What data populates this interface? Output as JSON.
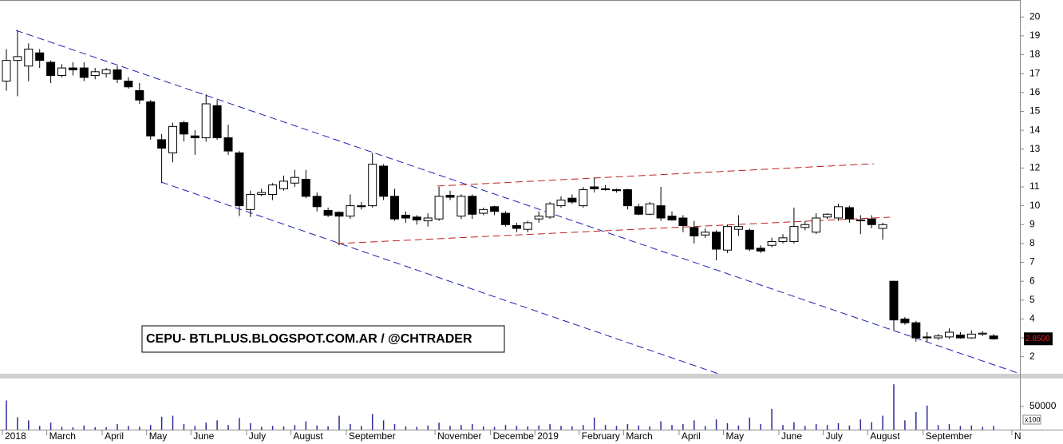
{
  "chart_data": [
    {
      "type": "candlestick",
      "categories": [
        "2018",
        null,
        null,
        null,
        "March",
        null,
        null,
        null,
        null,
        "April",
        null,
        null,
        null,
        "May",
        null,
        null,
        null,
        "June",
        null,
        null,
        null,
        null,
        "July",
        null,
        null,
        null,
        "August",
        null,
        null,
        null,
        null,
        "September",
        null,
        null,
        null,
        null,
        null,
        null,
        null,
        "November",
        null,
        null,
        null,
        null,
        "Decembe",
        null,
        null,
        null,
        "2019",
        null,
        null,
        null,
        "February",
        null,
        null,
        null,
        "March",
        null,
        null,
        null,
        null,
        "April",
        null,
        null,
        null,
        "May",
        null,
        null,
        null,
        null,
        "June",
        null,
        null,
        null,
        "July",
        null,
        null,
        null,
        "August",
        null,
        null,
        null,
        null,
        "September",
        null,
        null,
        null,
        null,
        null,
        null,
        null,
        "N"
      ],
      "open": [
        16.6,
        17.7,
        17.4,
        18.1,
        17.6,
        16.9,
        17.3,
        17.3,
        16.9,
        17.0,
        17.2,
        16.6,
        16.1,
        15.5,
        13.5,
        12.8,
        14.4,
        13.7,
        13.6,
        15.3,
        13.6,
        12.8,
        9.8,
        10.6,
        10.6,
        10.9,
        11.2,
        11.4,
        10.5,
        9.75,
        9.65,
        9.45,
        10.0,
        10.0,
        12.1,
        10.5,
        9.5,
        9.4,
        9.2,
        9.3,
        10.55,
        9.45,
        10.5,
        9.6,
        9.95,
        9.6,
        8.95,
        8.75,
        9.3,
        9.4,
        10.0,
        10.4,
        10.0,
        11.0,
        10.9,
        10.85,
        10.85,
        9.95,
        9.55,
        10.0,
        9.45,
        9.35,
        8.85,
        8.45,
        8.6,
        7.65,
        8.75,
        8.7,
        7.75,
        7.9,
        8.1,
        8.1,
        8.85,
        8.6,
        9.4,
        9.35,
        9.9,
        9.2,
        9.3,
        8.8,
        6.0,
        4.0,
        3.8,
        3.05,
        3.0,
        3.05,
        3.15,
        3.0,
        3.2,
        3.1,
        null,
        null
      ],
      "high": [
        18.3,
        19.3,
        18.6,
        18.3,
        17.7,
        17.5,
        17.6,
        17.6,
        17.3,
        17.3,
        17.4,
        16.8,
        16.5,
        15.6,
        13.8,
        14.4,
        14.5,
        14.0,
        15.9,
        15.6,
        14.3,
        12.9,
        10.8,
        10.9,
        11.2,
        11.6,
        11.9,
        11.9,
        10.7,
        9.9,
        9.7,
        10.6,
        10.2,
        12.8,
        12.2,
        10.9,
        9.7,
        9.5,
        9.6,
        11.0,
        10.8,
        10.6,
        10.6,
        9.9,
        10.0,
        9.7,
        9.1,
        9.2,
        9.7,
        10.2,
        10.5,
        10.6,
        11.0,
        11.5,
        11.1,
        10.9,
        10.9,
        10.1,
        10.2,
        11.0,
        9.7,
        9.5,
        9.2,
        8.8,
        8.7,
        9.0,
        9.5,
        8.8,
        7.9,
        8.3,
        8.5,
        9.9,
        9.2,
        9.6,
        9.6,
        10.1,
        10.0,
        9.5,
        9.5,
        9.1,
        6.0,
        4.1,
        3.9,
        3.3,
        3.2,
        3.5,
        3.3,
        3.4,
        3.35,
        3.2,
        null,
        null
      ],
      "low": [
        16.1,
        15.8,
        16.6,
        17.3,
        16.5,
        16.8,
        16.9,
        16.6,
        16.7,
        16.8,
        16.5,
        16.2,
        15.4,
        13.5,
        11.2,
        12.3,
        13.4,
        12.7,
        13.4,
        13.5,
        12.7,
        9.45,
        9.4,
        10.5,
        10.3,
        10.8,
        11.0,
        10.4,
        9.7,
        9.4,
        7.9,
        9.3,
        9.8,
        9.9,
        10.3,
        9.2,
        9.1,
        9.0,
        8.9,
        9.2,
        10.3,
        9.3,
        9.3,
        9.5,
        9.5,
        8.9,
        8.6,
        8.6,
        9.1,
        9.3,
        9.9,
        10.1,
        9.9,
        10.7,
        10.8,
        10.7,
        9.8,
        9.5,
        9.5,
        9.2,
        9.2,
        8.6,
        8.0,
        8.3,
        7.1,
        7.5,
        8.4,
        7.6,
        7.5,
        7.8,
        8.0,
        8.0,
        8.7,
        8.5,
        9.3,
        9.2,
        9.1,
        8.5,
        8.8,
        8.2,
        3.4,
        3.7,
        2.8,
        2.8,
        2.9,
        2.95,
        2.95,
        2.95,
        3.1,
        2.9,
        null,
        null
      ],
      "close": [
        17.7,
        17.9,
        18.3,
        17.7,
        16.9,
        17.3,
        17.2,
        16.8,
        17.1,
        17.2,
        16.7,
        16.3,
        15.6,
        13.7,
        13.05,
        14.2,
        13.8,
        13.6,
        15.4,
        13.6,
        12.9,
        10.0,
        10.6,
        10.7,
        11.1,
        11.3,
        11.5,
        10.5,
        9.95,
        9.5,
        9.45,
        10.0,
        9.95,
        12.2,
        10.5,
        9.3,
        9.35,
        9.25,
        9.35,
        10.5,
        10.45,
        10.5,
        9.55,
        9.8,
        9.7,
        9.0,
        8.8,
        9.1,
        9.45,
        10.1,
        10.3,
        10.2,
        10.85,
        10.9,
        10.85,
        10.8,
        10.0,
        9.55,
        10.1,
        9.35,
        9.25,
        8.95,
        8.4,
        8.6,
        7.7,
        8.9,
        8.9,
        7.7,
        7.6,
        8.1,
        8.3,
        8.9,
        9.0,
        9.35,
        9.55,
        9.95,
        9.3,
        9.25,
        9.0,
        9.0,
        3.95,
        3.8,
        3.0,
        3.0,
        3.1,
        3.3,
        3.0,
        3.2,
        3.25,
        2.95,
        null,
        null
      ],
      "up_color": "#ffffff",
      "down_color": "#000000",
      "ylim": [
        1.1,
        20.9
      ],
      "yticks": [
        2,
        3,
        4,
        5,
        6,
        7,
        8,
        9,
        10,
        11,
        12,
        13,
        14,
        15,
        16,
        17,
        18,
        19,
        20
      ],
      "last_price_label": "2.8500",
      "annotation": "CEPU- BTLPLUS.BLOGSPOT.COM.AR / @CHTRADER"
    },
    {
      "type": "bar",
      "color": "#2a2aa0",
      "values": [
        63000,
        27000,
        20000,
        8000,
        15000,
        6000,
        5000,
        9000,
        5000,
        5000,
        12000,
        8000,
        6000,
        10000,
        28000,
        30000,
        12000,
        8000,
        15000,
        20000,
        10000,
        25000,
        14000,
        6000,
        8000,
        7000,
        10000,
        18000,
        9000,
        7000,
        30000,
        12000,
        8000,
        34000,
        20000,
        12000,
        7000,
        6000,
        9000,
        15000,
        8000,
        10000,
        12000,
        7000,
        6000,
        10000,
        8000,
        7000,
        9000,
        12000,
        8000,
        7000,
        10000,
        26000,
        10000,
        8000,
        12000,
        9000,
        7000,
        18000,
        10000,
        12000,
        20000,
        8000,
        22000,
        14000,
        9000,
        26000,
        12000,
        45000,
        10000,
        16000,
        8000,
        12000,
        10000,
        14000,
        9000,
        22000,
        16000,
        30000,
        98000,
        20000,
        38000,
        52000,
        10000,
        12000,
        8000,
        9000,
        6000,
        8000,
        null,
        null
      ],
      "ylim": [
        0,
        107000
      ],
      "yticks": [
        50000
      ],
      "y_axis_label": "x100"
    }
  ]
}
